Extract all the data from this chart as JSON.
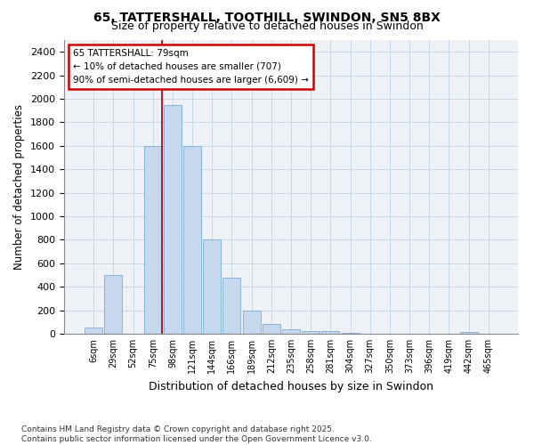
{
  "title_line1": "65, TATTERSHALL, TOOTHILL, SWINDON, SN5 8BX",
  "title_line2": "Size of property relative to detached houses in Swindon",
  "xlabel": "Distribution of detached houses by size in Swindon",
  "ylabel": "Number of detached properties",
  "bar_color": "#c5d8ed",
  "bar_edge_color": "#7aadd4",
  "grid_color": "#c8d8e8",
  "background_color": "#eef2f7",
  "annotation_box_color": "#cc0000",
  "vline_color": "#cc0000",
  "vline_x_index": 3,
  "annotation_text": "65 TATTERSHALL: 79sqm\n← 10% of detached houses are smaller (707)\n90% of semi-detached houses are larger (6,609) →",
  "categories": [
    "6sqm",
    "29sqm",
    "52sqm",
    "75sqm",
    "98sqm",
    "121sqm",
    "144sqm",
    "166sqm",
    "189sqm",
    "212sqm",
    "235sqm",
    "258sqm",
    "281sqm",
    "304sqm",
    "327sqm",
    "350sqm",
    "373sqm",
    "396sqm",
    "419sqm",
    "442sqm",
    "465sqm"
  ],
  "values": [
    55,
    500,
    0,
    1600,
    1950,
    1600,
    800,
    480,
    200,
    85,
    35,
    25,
    20,
    8,
    3,
    0,
    0,
    0,
    0,
    15,
    0
  ],
  "ylim": [
    0,
    2500
  ],
  "yticks": [
    0,
    200,
    400,
    600,
    800,
    1000,
    1200,
    1400,
    1600,
    1800,
    2000,
    2200,
    2400
  ],
  "footnote": "Contains HM Land Registry data © Crown copyright and database right 2025.\nContains public sector information licensed under the Open Government Licence v3.0.",
  "figsize": [
    6.0,
    5.0
  ],
  "dpi": 100
}
